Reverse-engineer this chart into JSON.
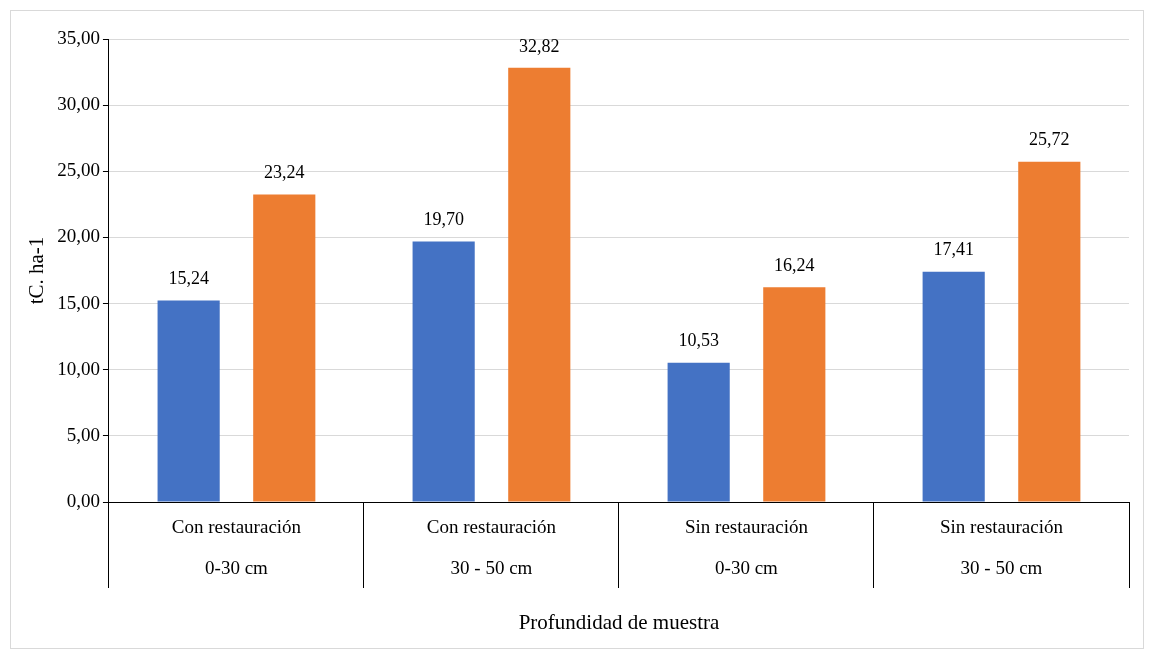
{
  "chart_data": {
    "type": "bar",
    "xlabel": "Profundidad de muestra",
    "ylabel": "tC. ha-1",
    "categories": [
      "Con restauración\n0-30 cm",
      "Con restauración\n30 - 50 cm",
      "Sin restauración\n0-30 cm",
      "Sin restauración\n30 - 50 cm"
    ],
    "series": [
      {
        "color": "#4472c4",
        "values": [
          15.24,
          19.7,
          10.53,
          17.41
        ],
        "value_labels": [
          "15,24",
          "19,70",
          "10,53",
          "17,41"
        ]
      },
      {
        "color": "#ed7d31",
        "values": [
          23.24,
          32.82,
          16.24,
          25.72
        ],
        "value_labels": [
          "23,24",
          "32,82",
          "16,24",
          "25,72"
        ]
      }
    ],
    "ylim": [
      0,
      35
    ],
    "yticks": [
      {
        "value": 0,
        "label": "0,00"
      },
      {
        "value": 5,
        "label": "5,00"
      },
      {
        "value": 10,
        "label": "10,00"
      },
      {
        "value": 15,
        "label": "15,00"
      },
      {
        "value": 20,
        "label": "20,00"
      },
      {
        "value": 25,
        "label": "25,00"
      },
      {
        "value": 30,
        "label": "30,00"
      },
      {
        "value": 35,
        "label": "35,00"
      }
    ],
    "grid": "y",
    "legend": false
  }
}
